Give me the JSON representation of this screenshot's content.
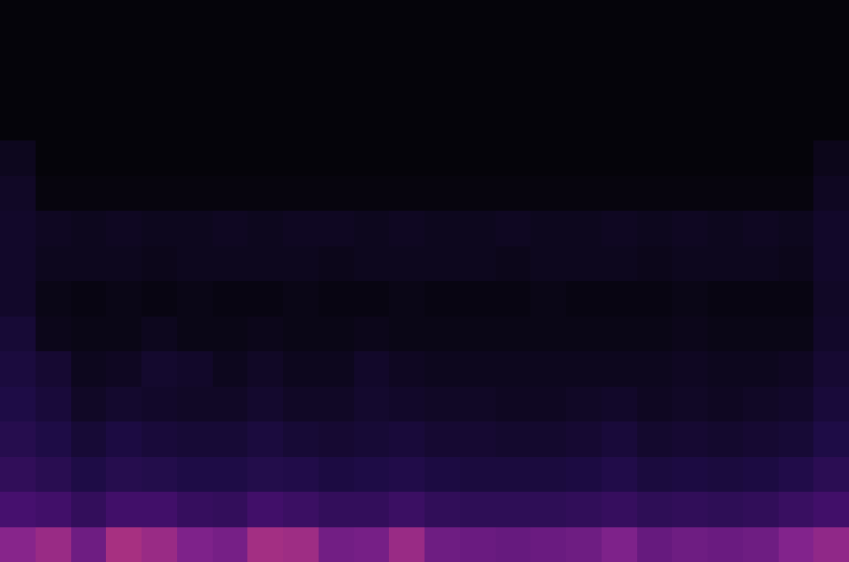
{
  "chart_data": {
    "type": "heatmap",
    "tick_labels": false,
    "color_range": [
      0,
      1
    ],
    "cells": [
      [
        0,
        0,
        0,
        0,
        0,
        0,
        0,
        0,
        0,
        0,
        0,
        0,
        0,
        0,
        0,
        0,
        0,
        0,
        0,
        0,
        0,
        0,
        0,
        0
      ],
      [
        0,
        0,
        0,
        0,
        0,
        0,
        0,
        0,
        0,
        0,
        0,
        0,
        0,
        0,
        0,
        0,
        0,
        0,
        0,
        0,
        0,
        0,
        0,
        0
      ],
      [
        0,
        0,
        0,
        0,
        0,
        0,
        0,
        0,
        0,
        0,
        0,
        0,
        0,
        0,
        0,
        0,
        0,
        0,
        0,
        0,
        0,
        0,
        0,
        0
      ],
      [
        0,
        0,
        0,
        0,
        0,
        0,
        0,
        0,
        0,
        0,
        0,
        0,
        0,
        0,
        0,
        0,
        0,
        0,
        0,
        0,
        0,
        0,
        0,
        0
      ],
      [
        0.05,
        0,
        0,
        0,
        0,
        0,
        0,
        0,
        0,
        0,
        0,
        0,
        0,
        0,
        0,
        0,
        0,
        0,
        0,
        0,
        0,
        0,
        0,
        0.04
      ],
      [
        0.07,
        0.01,
        0.01,
        0.01,
        0.01,
        0.01,
        0.01,
        0.01,
        0.01,
        0.01,
        0.01,
        0.01,
        0.01,
        0.01,
        0.01,
        0.01,
        0.01,
        0.01,
        0.01,
        0.01,
        0.01,
        0.01,
        0.01,
        0.06
      ],
      [
        0.08,
        0.06,
        0.05,
        0.06,
        0.05,
        0.05,
        0.06,
        0.05,
        0.06,
        0.06,
        0.05,
        0.06,
        0.05,
        0.05,
        0.06,
        0.05,
        0.05,
        0.06,
        0.05,
        0.06,
        0.05,
        0.06,
        0.05,
        0.08
      ],
      [
        0.08,
        0.05,
        0.05,
        0.05,
        0.04,
        0.05,
        0.05,
        0.05,
        0.05,
        0.04,
        0.05,
        0.05,
        0.05,
        0.05,
        0.04,
        0.05,
        0.05,
        0.05,
        0.04,
        0.05,
        0.05,
        0.05,
        0.04,
        0.08
      ],
      [
        0.08,
        0.03,
        0.02,
        0.03,
        0.02,
        0.03,
        0.02,
        0.02,
        0.03,
        0.02,
        0.02,
        0.03,
        0.02,
        0.02,
        0.02,
        0.03,
        0.02,
        0.02,
        0.02,
        0.03,
        0.02,
        0.02,
        0.02,
        0.07
      ],
      [
        0.11,
        0.04,
        0.03,
        0.03,
        0.05,
        0.03,
        0.03,
        0.04,
        0.03,
        0.03,
        0.04,
        0.03,
        0.03,
        0.03,
        0.03,
        0.03,
        0.03,
        0.03,
        0.03,
        0.04,
        0.03,
        0.03,
        0.03,
        0.08
      ],
      [
        0.13,
        0.1,
        0.05,
        0.06,
        0.09,
        0.08,
        0.05,
        0.07,
        0.05,
        0.05,
        0.08,
        0.06,
        0.05,
        0.05,
        0.05,
        0.05,
        0.05,
        0.05,
        0.05,
        0.06,
        0.05,
        0.05,
        0.06,
        0.1
      ],
      [
        0.15,
        0.12,
        0.07,
        0.09,
        0.08,
        0.07,
        0.07,
        0.09,
        0.07,
        0.07,
        0.09,
        0.08,
        0.07,
        0.07,
        0.06,
        0.06,
        0.07,
        0.08,
        0.06,
        0.07,
        0.06,
        0.07,
        0.08,
        0.12
      ],
      [
        0.18,
        0.15,
        0.11,
        0.14,
        0.12,
        0.11,
        0.11,
        0.13,
        0.11,
        0.1,
        0.11,
        0.12,
        0.1,
        0.1,
        0.09,
        0.09,
        0.1,
        0.12,
        0.09,
        0.1,
        0.09,
        0.1,
        0.11,
        0.15
      ],
      [
        0.22,
        0.19,
        0.15,
        0.18,
        0.17,
        0.15,
        0.15,
        0.17,
        0.16,
        0.14,
        0.15,
        0.16,
        0.14,
        0.13,
        0.13,
        0.13,
        0.14,
        0.16,
        0.13,
        0.14,
        0.13,
        0.14,
        0.16,
        0.2
      ],
      [
        0.3,
        0.28,
        0.23,
        0.28,
        0.28,
        0.24,
        0.23,
        0.28,
        0.26,
        0.23,
        0.23,
        0.26,
        0.22,
        0.21,
        0.21,
        0.21,
        0.22,
        0.24,
        0.21,
        0.22,
        0.21,
        0.22,
        0.25,
        0.28
      ],
      [
        0.46,
        0.5,
        0.4,
        0.53,
        0.5,
        0.44,
        0.42,
        0.52,
        0.51,
        0.41,
        0.42,
        0.5,
        0.4,
        0.39,
        0.38,
        0.39,
        0.4,
        0.44,
        0.38,
        0.4,
        0.39,
        0.4,
        0.45,
        0.48
      ]
    ]
  }
}
